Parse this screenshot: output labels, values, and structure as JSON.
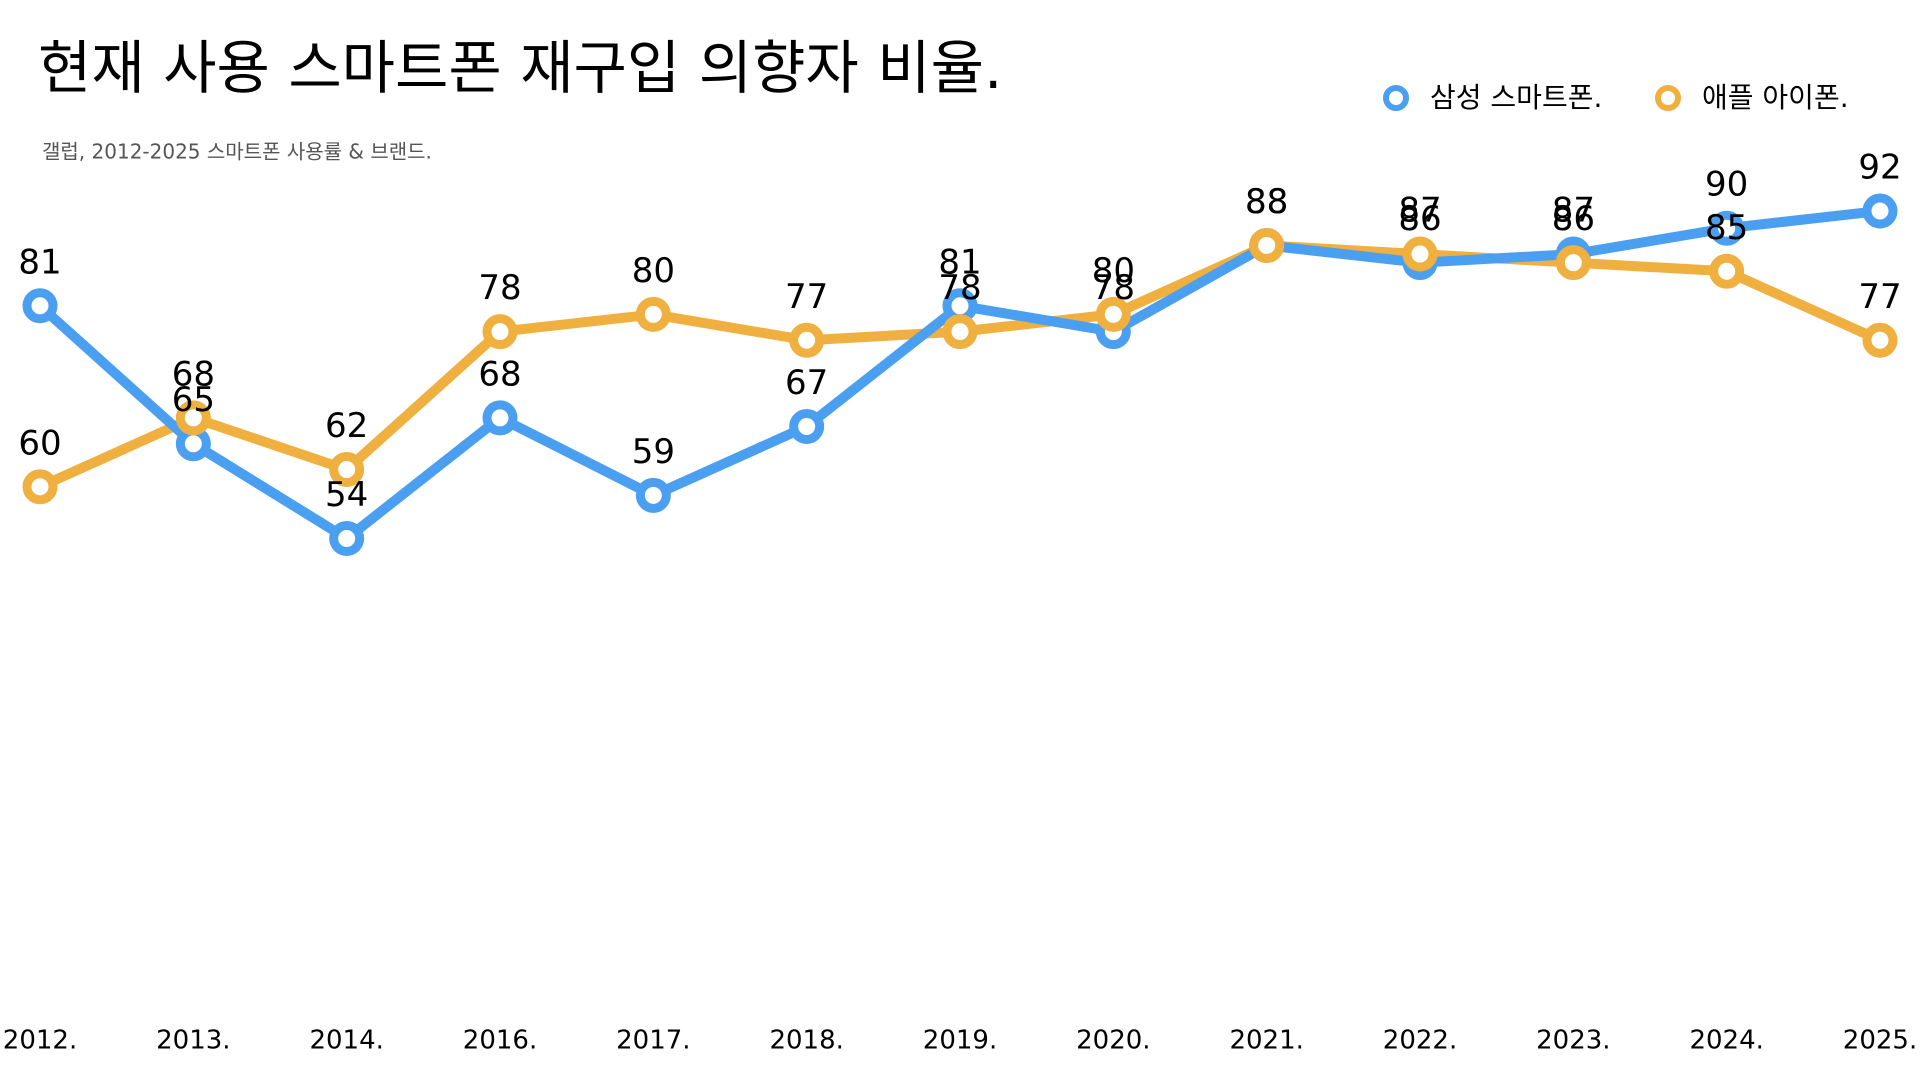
{
  "chart_data": {
    "type": "line",
    "title": "현재 사용 스마트폰 재구입 의향자 비율.",
    "subtitle": "갤럽, 2012-2025 스마트폰 사용률 & 브랜드.",
    "categories": [
      "2012.",
      "2013.",
      "2014.",
      "2016.",
      "2017.",
      "2018.",
      "2019.",
      "2020.",
      "2021.",
      "2022.",
      "2023.",
      "2024.",
      "2025."
    ],
    "series": [
      {
        "name": "삼성 스마트폰.",
        "color": "#4a9ff0",
        "values": [
          81,
          65,
          54,
          68,
          59,
          67,
          81,
          78,
          88,
          86,
          87,
          90,
          92
        ]
      },
      {
        "name": "애플 아이폰.",
        "color": "#f0b040",
        "values": [
          60,
          68,
          62,
          78,
          80,
          77,
          78,
          80,
          88,
          87,
          86,
          85,
          77
        ]
      }
    ],
    "ylim": [
      0,
      100
    ],
    "legend": "top-right"
  }
}
